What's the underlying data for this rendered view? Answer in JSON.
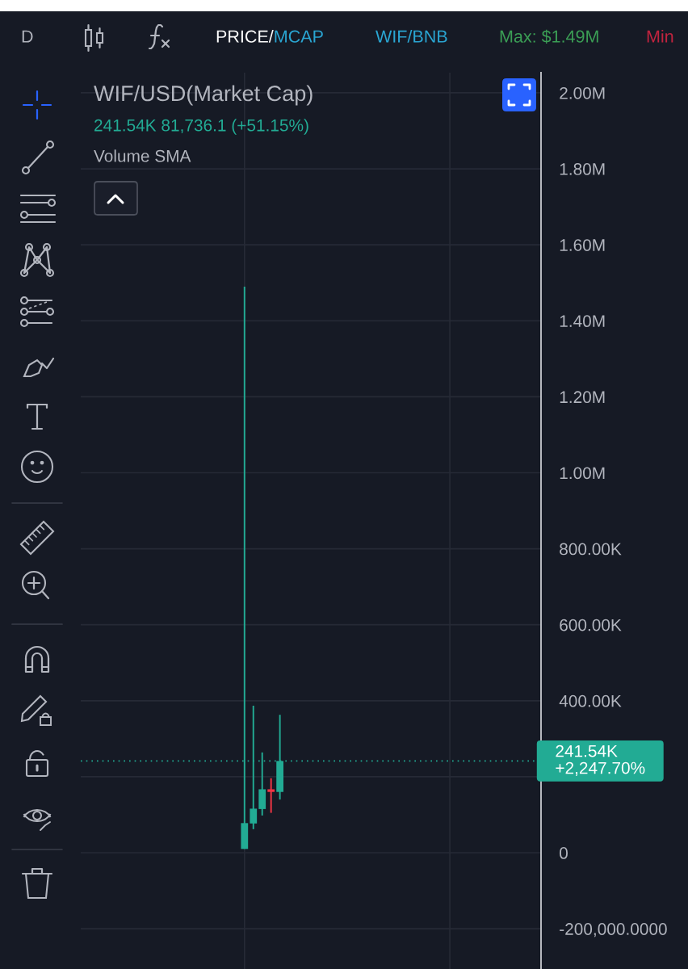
{
  "chart_data": {
    "type": "candlestick",
    "title": "WIF/USD(Market Cap)",
    "subtitle": "241.54K 81,736.1 (+51.15%)",
    "categories": [
      null,
      null,
      null,
      null,
      null,
      null,
      null,
      null,
      null,
      null,
      null,
      null,
      null,
      null,
      null,
      null,
      null,
      null,
      null,
      null,
      null,
      null,
      null,
      null,
      null,
      null,
      null,
      null,
      null,
      null,
      null,
      null,
      null,
      null,
      null,
      null,
      null,
      null,
      null,
      null,
      null,
      null,
      null,
      null,
      null,
      null,
      null,
      null,
      null,
      null,
      null,
      null
    ],
    "ohlc": [
      null,
      null,
      null,
      null,
      null,
      null,
      null,
      null,
      null,
      null,
      null,
      null,
      null,
      null,
      null,
      null,
      null,
      null,
      [
        10000,
        1490000,
        10000,
        78000
      ],
      [
        77000,
        387000,
        62000,
        116000
      ],
      [
        115000,
        264000,
        98000,
        167000
      ],
      [
        167000,
        196000,
        105000,
        160000
      ],
      [
        160000,
        363000,
        140000,
        241540
      ],
      null,
      null,
      null,
      null,
      null,
      null,
      null,
      null,
      null,
      null,
      null,
      null,
      null,
      null,
      null,
      null,
      null,
      null,
      null,
      null,
      null,
      null,
      null,
      null,
      null,
      null,
      null,
      null,
      null
    ],
    "colors": [
      null,
      null,
      null,
      null,
      null,
      null,
      null,
      null,
      null,
      null,
      null,
      null,
      null,
      null,
      null,
      null,
      null,
      null,
      "#22ab94",
      "#22ab94",
      "#22ab94",
      "#f23645",
      "#22ab94",
      null,
      null,
      null,
      null,
      null,
      null,
      null,
      null,
      null,
      null,
      null,
      null,
      null,
      null,
      null,
      null,
      null,
      null,
      null,
      null,
      null,
      null,
      null,
      null,
      null,
      null,
      null,
      null,
      null
    ],
    "ylim": [
      -306000,
      2053000
    ],
    "yticks": [
      {
        "value": -200000,
        "label": "-200,000.0000"
      },
      0,
      {
        "value": 200000,
        "label": null
      },
      {
        "value": 400000,
        "label": "400.00K"
      },
      {
        "value": 600000,
        "label": "600.00K"
      },
      {
        "value": 800000,
        "label": "800.00K"
      },
      {
        "value": 1000000,
        "label": "1.00M"
      },
      {
        "value": 1200000,
        "label": "1.20M"
      },
      {
        "value": 1400000,
        "label": "1.40M"
      },
      {
        "value": 1600000,
        "label": "1.60M"
      },
      {
        "value": 1800000,
        "label": "1.80M"
      },
      {
        "value": 2000000,
        "label": "2.00M"
      }
    ],
    "tick_labels": "y",
    "grid": true,
    "ref_lines": [
      {
        "axis": "y",
        "value": 241540,
        "label": "241.54K\n+2,247.70%",
        "color": "#22ab94",
        "line_style": "dotted"
      }
    ],
    "annotations": [
      "D",
      "PRICE/",
      "MCAP",
      "WIF/BNB",
      "Max: $1.49M",
      "Min",
      "Volume SMA"
    ]
  }
}
